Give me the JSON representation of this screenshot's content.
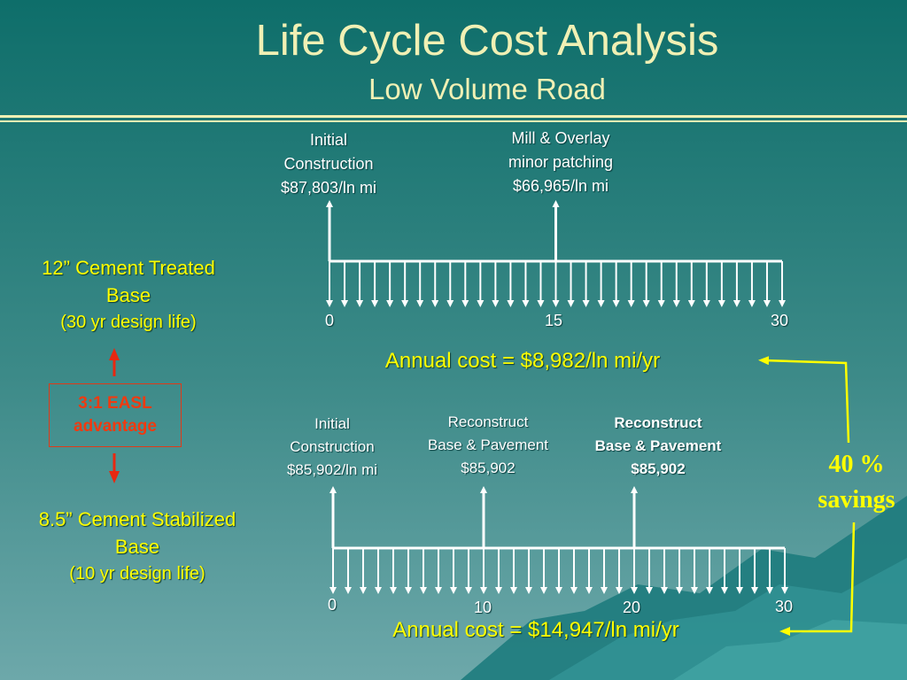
{
  "slide": {
    "title": "Life Cycle Cost Analysis",
    "subtitle": "Low Volume Road"
  },
  "top_design": {
    "label_line1": "12” Cement Treated",
    "label_line2": "Base",
    "label_line3": "(30 yr design life)",
    "events": [
      {
        "year": 0,
        "lines": [
          "Initial",
          "Construction",
          "$87,803/ln mi"
        ]
      },
      {
        "year": 15,
        "lines": [
          "Mill & Overlay",
          "minor patching",
          "$66,965/ln mi"
        ]
      }
    ],
    "ticks": [
      "0",
      "15",
      "30"
    ],
    "annual_cost": "Annual cost = $8,982/ln mi/yr"
  },
  "bottom_design": {
    "label_line1": "8.5” Cement Stabilized",
    "label_line2": "Base",
    "label_line3": "(10 yr design life)",
    "events": [
      {
        "year": 0,
        "lines": [
          "Initial",
          "Construction",
          "$85,902/ln mi"
        ]
      },
      {
        "year": 10,
        "lines": [
          "Reconstruct",
          "Base & Pavement",
          "$85,902"
        ]
      },
      {
        "year": 20,
        "lines": [
          "Reconstruct",
          "Base & Pavement",
          "$85,902"
        ]
      }
    ],
    "ticks": [
      "0",
      "10",
      "20",
      "30"
    ],
    "annual_cost": "Annual cost = $14,947/ln mi/yr"
  },
  "easl": {
    "line1": "3:1 EASL",
    "line2": "advantage"
  },
  "savings": {
    "line1": "40 %",
    "line2": "savings"
  },
  "colors": {
    "title": "#F0F0B4",
    "highlight": "#FFFF00",
    "warning": "#F03A10",
    "bg_top": "#0E6E6A",
    "bg_bottom": "#6AA5A8"
  }
}
